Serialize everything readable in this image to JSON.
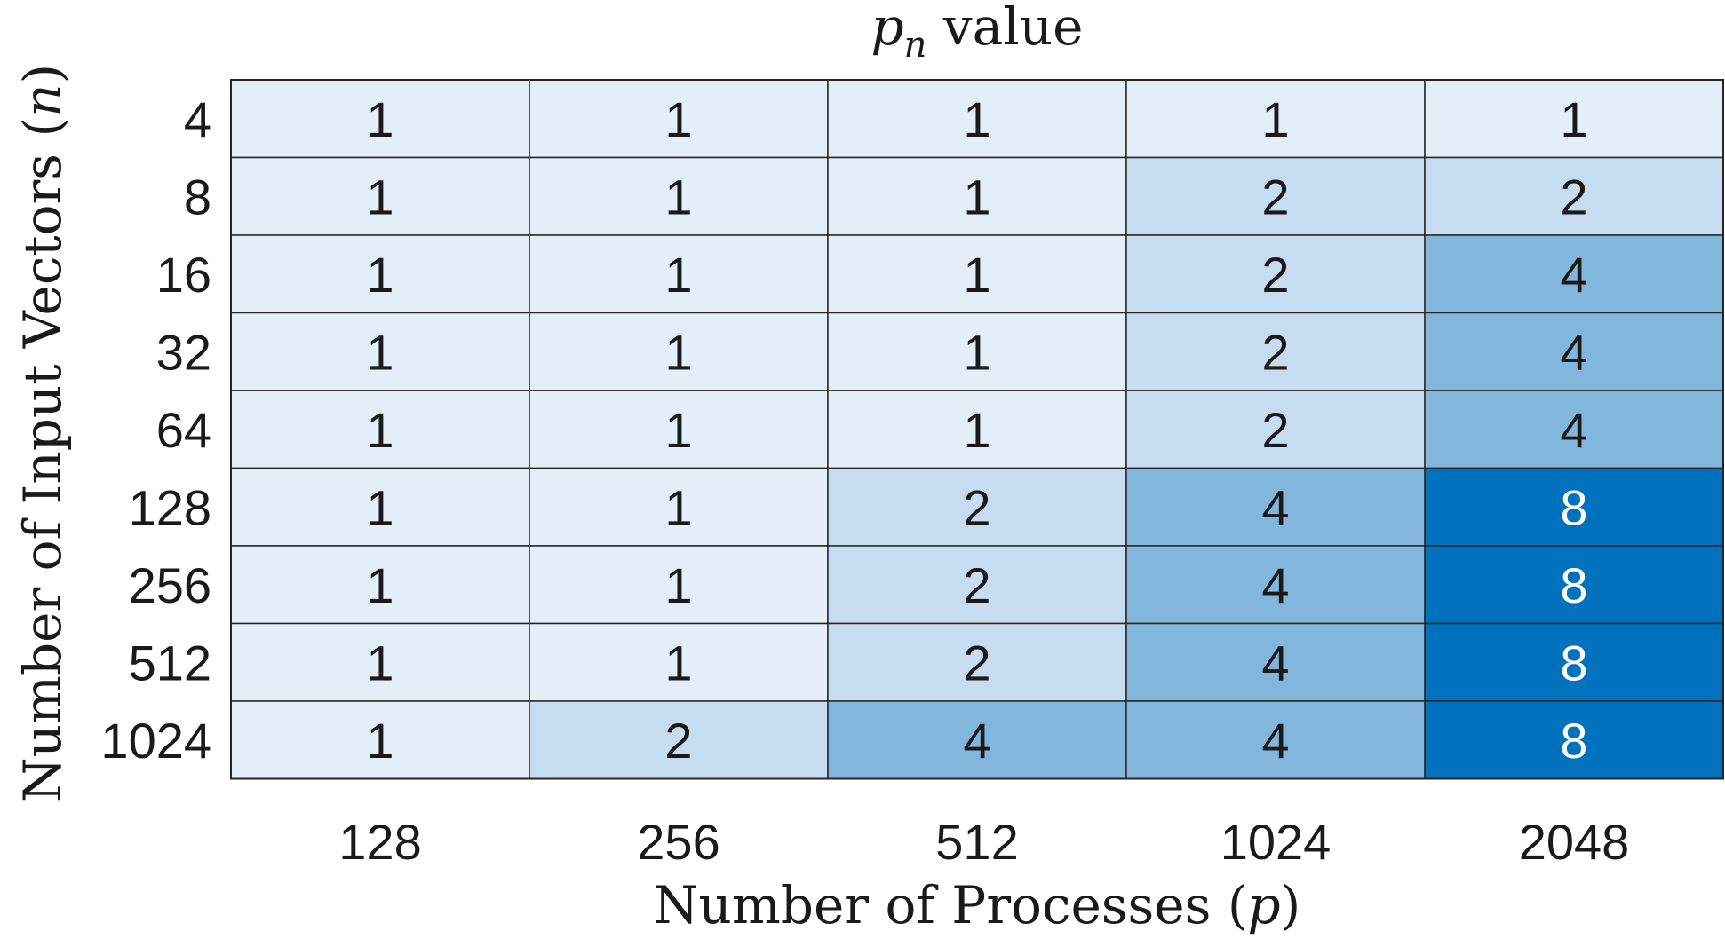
{
  "chart_data": {
    "type": "heatmap",
    "title": {
      "symbol": "p",
      "subscript": "n",
      "text": " value"
    },
    "xlabel": {
      "text": "Number of Processes (",
      "symbol": "p",
      "close": ")"
    },
    "ylabel": {
      "text": "Number of Input Vectors (",
      "symbol": "n",
      "close": ")"
    },
    "x": [
      "128",
      "256",
      "512",
      "1024",
      "2048"
    ],
    "y": [
      "4",
      "8",
      "16",
      "32",
      "64",
      "128",
      "256",
      "512",
      "1024"
    ],
    "values": [
      [
        1,
        1,
        1,
        1,
        1
      ],
      [
        1,
        1,
        1,
        2,
        2
      ],
      [
        1,
        1,
        1,
        2,
        4
      ],
      [
        1,
        1,
        1,
        2,
        4
      ],
      [
        1,
        1,
        1,
        2,
        4
      ],
      [
        1,
        1,
        2,
        4,
        8
      ],
      [
        1,
        1,
        2,
        4,
        8
      ],
      [
        1,
        1,
        2,
        4,
        8
      ],
      [
        1,
        2,
        4,
        4,
        8
      ]
    ],
    "colors": {
      "1": "#e3eef8",
      "2": "#c6dcf0",
      "4": "#82b6dd",
      "8": "#0071bd"
    },
    "label_colors": {
      "dark": "#1a1a1a",
      "light": "#ffffff"
    },
    "grid": true,
    "colorbar": false
  }
}
